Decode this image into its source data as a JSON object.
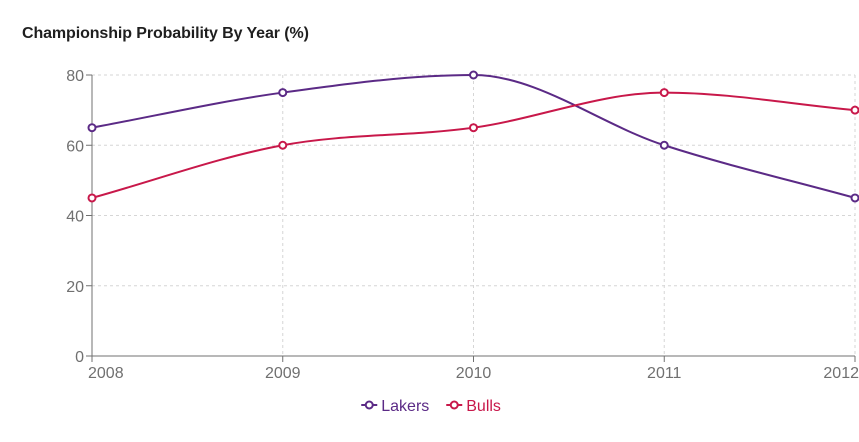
{
  "chart_data": {
    "type": "line",
    "title": "Championship Probability By Year (%)",
    "x": [
      "2008",
      "2009",
      "2010",
      "2011",
      "2012"
    ],
    "ylim": [
      0,
      80
    ],
    "yticks": [
      0,
      20,
      40,
      60,
      80
    ],
    "grid": true,
    "legend_position": "bottom-center",
    "series": [
      {
        "name": "Lakers",
        "values": [
          65,
          75,
          80,
          60,
          45
        ],
        "color": "#5b2a86"
      },
      {
        "name": "Bulls",
        "values": [
          45,
          60,
          65,
          75,
          70
        ],
        "color": "#c8184a"
      }
    ]
  }
}
